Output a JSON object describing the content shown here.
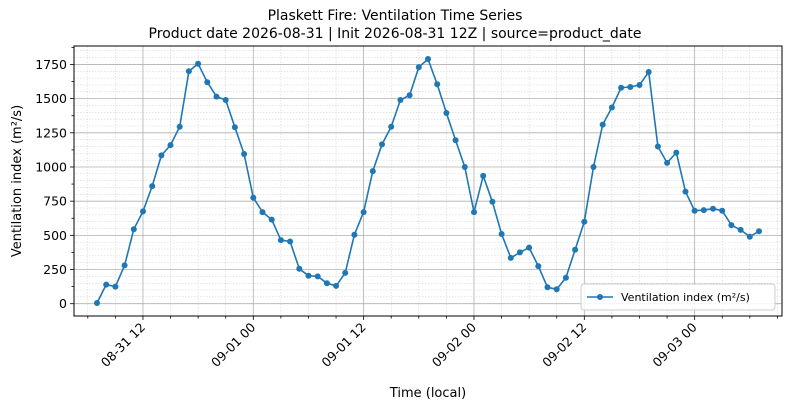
{
  "chart_data": {
    "type": "line",
    "title": "Plaskett Fire: Ventilation Time Series",
    "subtitle": "Product date 2026-08-31 | Init 2026-08-31 12Z | source=product_date",
    "xlabel": "Time (local)",
    "ylabel": "Ventilation index (m²/s)",
    "x_tick_labels": [
      "08-31 12",
      "09-01 00",
      "09-01 12",
      "09-02 00",
      "09-02 12",
      "09-03 00"
    ],
    "x_tick_hours": [
      12,
      24,
      36,
      48,
      60,
      72
    ],
    "x_start": "2026-08-31 07:00",
    "x_step_hours": 1,
    "xlim_hours": [
      4.5,
      81.5
    ],
    "y_ticks": [
      0,
      250,
      500,
      750,
      1000,
      1250,
      1500,
      1750
    ],
    "ylim": [
      -90,
      1885
    ],
    "grid": true,
    "legend_position": "lower-right",
    "series": [
      {
        "name": "Ventilation index (m²/s)",
        "color": "#1f77b4",
        "values": [
          5,
          140,
          125,
          280,
          545,
          675,
          860,
          1085,
          1160,
          1295,
          1700,
          1755,
          1620,
          1515,
          1490,
          1290,
          1095,
          775,
          670,
          615,
          465,
          455,
          255,
          205,
          200,
          150,
          130,
          225,
          505,
          670,
          970,
          1165,
          1295,
          1490,
          1525,
          1730,
          1790,
          1605,
          1395,
          1195,
          1000,
          670,
          935,
          745,
          510,
          335,
          375,
          410,
          275,
          120,
          105,
          190,
          395,
          600,
          1000,
          1310,
          1435,
          1580,
          1585,
          1600,
          1695,
          1150,
          1030,
          1105,
          820,
          680,
          685,
          695,
          680,
          575,
          540,
          490,
          530
        ]
      }
    ]
  }
}
